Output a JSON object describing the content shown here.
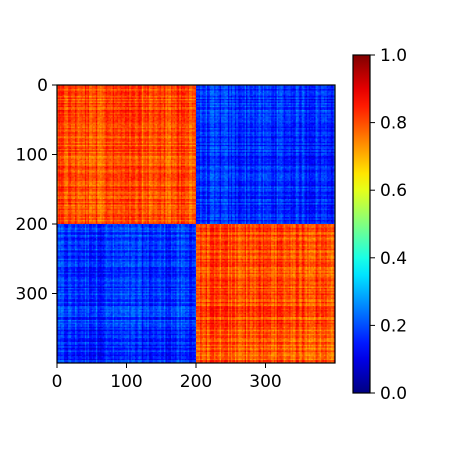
{
  "chart_data": {
    "type": "heatmap",
    "title": "",
    "xlabel": "",
    "ylabel": "",
    "size": 400,
    "xlim": [
      0,
      400
    ],
    "ylim": [
      400,
      0
    ],
    "x_ticks": [
      0,
      100,
      200,
      300
    ],
    "y_ticks": [
      0,
      100,
      200,
      300
    ],
    "block_boundaries": [
      0,
      200,
      400
    ],
    "block_means": [
      [
        0.8,
        0.17
      ],
      [
        0.17,
        0.8
      ]
    ],
    "value_range_diagonal_blocks": [
      0.7,
      0.9
    ],
    "value_range_offdiagonal_blocks": [
      0.08,
      0.3
    ],
    "colorscale": "jet",
    "colorbar": {
      "range": [
        0.0,
        1.0
      ],
      "ticks": [
        0.0,
        0.2,
        0.4,
        0.6,
        0.8,
        1.0
      ],
      "tick_labels": [
        "0.0",
        "0.2",
        "0.4",
        "0.6",
        "0.8",
        "1.0"
      ]
    },
    "grid": false,
    "legend": "none"
  }
}
